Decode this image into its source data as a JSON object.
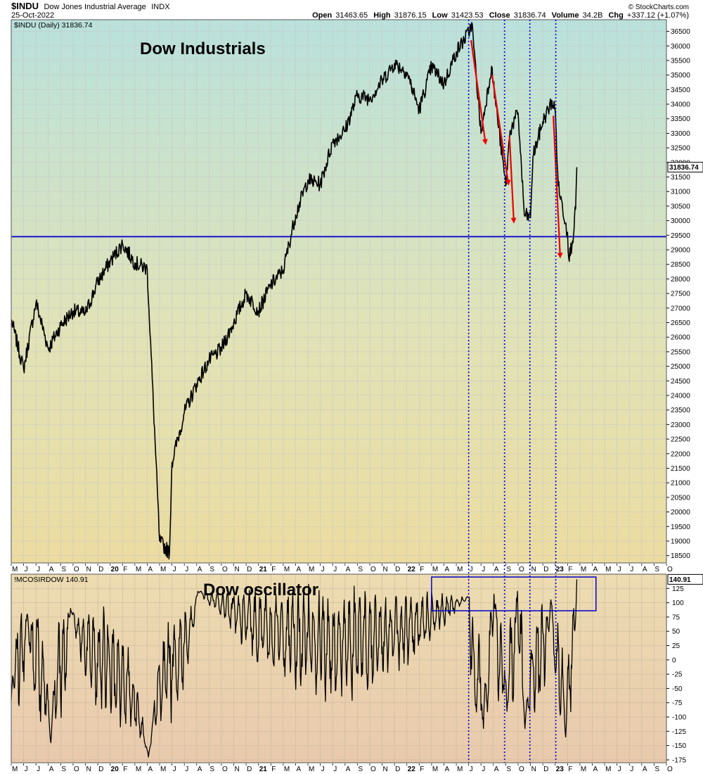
{
  "header": {
    "symbol": "$INDU",
    "name": "Dow Jones Industrial Average",
    "exchange": "INDX",
    "date": "25-Oct-2022",
    "brand": "© StockCharts.com",
    "open_label": "Open",
    "open": "31463.65",
    "high_label": "High",
    "high": "31876.15",
    "low_label": "Low",
    "low": "31423.53",
    "close_label": "Close",
    "close": "31836.74",
    "volume_label": "Volume",
    "volume": "34.2B",
    "chg_label": "Chg",
    "chg": "+337.12 (+1.07%)"
  },
  "colors": {
    "price_bg_top": "#b9e1dc",
    "price_bg_mid": "#e0e3b8",
    "price_bg_bottom": "#ecdca0",
    "osc_bg_top": "#ecdcb0",
    "osc_bg_bottom": "#e9c9ad",
    "line": "#000000",
    "support_line": "#0000cc",
    "arrows": "#ee0000",
    "markers": "#0000cc",
    "box": "#0000cc",
    "value_box_bg": "#ffffff"
  },
  "chart_data": [
    {
      "id": "price",
      "type": "line",
      "legend": "$INDU (Daily) 31836.74",
      "annotation": "Dow Industrials",
      "last_value_label": "31836.74",
      "ylim": [
        18250,
        36900
      ],
      "y_ticks": [
        18500,
        19000,
        19500,
        20000,
        20500,
        21000,
        21500,
        22000,
        22500,
        23000,
        23500,
        24000,
        24500,
        25000,
        25500,
        26000,
        26500,
        27000,
        27500,
        28000,
        28500,
        29000,
        29500,
        30000,
        30500,
        31000,
        31500,
        32000,
        32500,
        33000,
        33500,
        34000,
        34500,
        35000,
        35500,
        36000,
        36500
      ],
      "hline": 29450,
      "x": [
        0,
        1,
        2,
        3,
        4,
        5,
        6,
        7,
        8,
        9,
        10,
        11,
        12,
        13,
        14,
        15,
        16,
        17,
        18,
        19,
        20,
        21,
        22,
        23,
        24,
        25,
        26,
        27,
        28,
        29,
        30,
        31,
        32,
        33,
        34,
        35,
        36,
        37,
        38,
        39,
        40,
        41,
        42,
        43,
        44,
        45
      ],
      "values": [
        26600,
        24900,
        27200,
        25600,
        26400,
        26900,
        26800,
        27900,
        28600,
        29200,
        28550,
        28350,
        19000,
        21700,
        23400,
        24400,
        25200,
        25600,
        26500,
        27500,
        26900,
        27800,
        28300,
        30200,
        31400,
        31250,
        32700,
        33100,
        34300,
        34200,
        34800,
        35400,
        35100,
        33800,
        35300,
        34700,
        35800,
        36450,
        33000,
        34700,
        31200,
        33700,
        30100,
        33400,
        33800,
        29600
      ],
      "extra_points": [
        {
          "x": 12.8,
          "value": 18600
        },
        {
          "x": 37.25,
          "value": 36800
        },
        {
          "x": 38.85,
          "value": 35300
        },
        {
          "x": 40.35,
          "value": 33100
        },
        {
          "x": 41.5,
          "value": 30200
        },
        {
          "x": 42.2,
          "value": 32200
        },
        {
          "x": 43.75,
          "value": 34100
        },
        {
          "x": 44.25,
          "value": 31200
        },
        {
          "x": 45.1,
          "value": 28700
        },
        {
          "x": 45.4,
          "value": 29300
        },
        {
          "x": 45.65,
          "value": 30400
        },
        {
          "x": 45.75,
          "value": 31836.74
        }
      ],
      "arrows": [
        {
          "from": [
            37.2,
            36200
          ],
          "to": [
            38.35,
            32700
          ]
        },
        {
          "from": [
            38.9,
            35000
          ],
          "to": [
            40.2,
            31300
          ]
        },
        {
          "from": [
            40.3,
            32900
          ],
          "to": [
            40.65,
            30000
          ]
        },
        {
          "from": [
            43.85,
            33600
          ],
          "to": [
            44.4,
            28800
          ]
        }
      ]
    },
    {
      "id": "oscillator",
      "type": "line",
      "legend": "!MCOSIRDOW 140.91",
      "annotation": "Dow oscillator",
      "last_value_label": "140.91",
      "ylim": [
        -180,
        150
      ],
      "y_ticks": [
        -175,
        -150,
        -125,
        -100,
        -75,
        -50,
        -25,
        0,
        25,
        50,
        75,
        100,
        125
      ],
      "values_seed": 7,
      "anchors": [
        {
          "x": 0,
          "value": -70
        },
        {
          "x": 1.3,
          "value": 80
        },
        {
          "x": 3.2,
          "value": -145
        },
        {
          "x": 4.8,
          "value": 90
        },
        {
          "x": 11.1,
          "value": -170
        },
        {
          "x": 15.1,
          "value": 120
        },
        {
          "x": 37.05,
          "value": 110
        },
        {
          "x": 37.55,
          "value": -80
        },
        {
          "x": 38.2,
          "value": -120
        },
        {
          "x": 39.05,
          "value": 115
        },
        {
          "x": 40.1,
          "value": -90
        },
        {
          "x": 40.95,
          "value": 120
        },
        {
          "x": 41.55,
          "value": -120
        },
        {
          "x": 43.65,
          "value": 105
        },
        {
          "x": 44.85,
          "value": -135
        },
        {
          "x": 45.75,
          "value": 140.91
        }
      ],
      "box": {
        "x": [
          34.0,
          47.3
        ],
        "y": [
          86,
          145
        ]
      }
    }
  ],
  "x_axis": {
    "labels": [
      "M",
      "J",
      "J",
      "A",
      "S",
      "O",
      "N",
      "D",
      "20",
      "F",
      "M",
      "A",
      "M",
      "J",
      "J",
      "A",
      "S",
      "O",
      "N",
      "D",
      "21",
      "F",
      "M",
      "A",
      "M",
      "J",
      "J",
      "A",
      "S",
      "O",
      "N",
      "D",
      "22",
      "F",
      "M",
      "A",
      "M",
      "J",
      "J",
      "A",
      "S",
      "O",
      "N",
      "D",
      "23",
      "F",
      "M",
      "A",
      "M",
      "J",
      "J",
      "A",
      "S",
      "O"
    ],
    "year_labels": [
      "20",
      "21",
      "22",
      "23"
    ],
    "month_indices": [
      0,
      1,
      2,
      3,
      4,
      5,
      6,
      7,
      8,
      9,
      10,
      11,
      12,
      13,
      14,
      15,
      16,
      17,
      18,
      19,
      20,
      21,
      22,
      23,
      24,
      25,
      26,
      27,
      28,
      29,
      30,
      31,
      32,
      33,
      34,
      35,
      36,
      37,
      38,
      39,
      40,
      41,
      42,
      43,
      44,
      45,
      46,
      47,
      48,
      49,
      50,
      51,
      52,
      53
    ],
    "marker_months": [
      37.0,
      39.9,
      41.95,
      44.05
    ]
  }
}
